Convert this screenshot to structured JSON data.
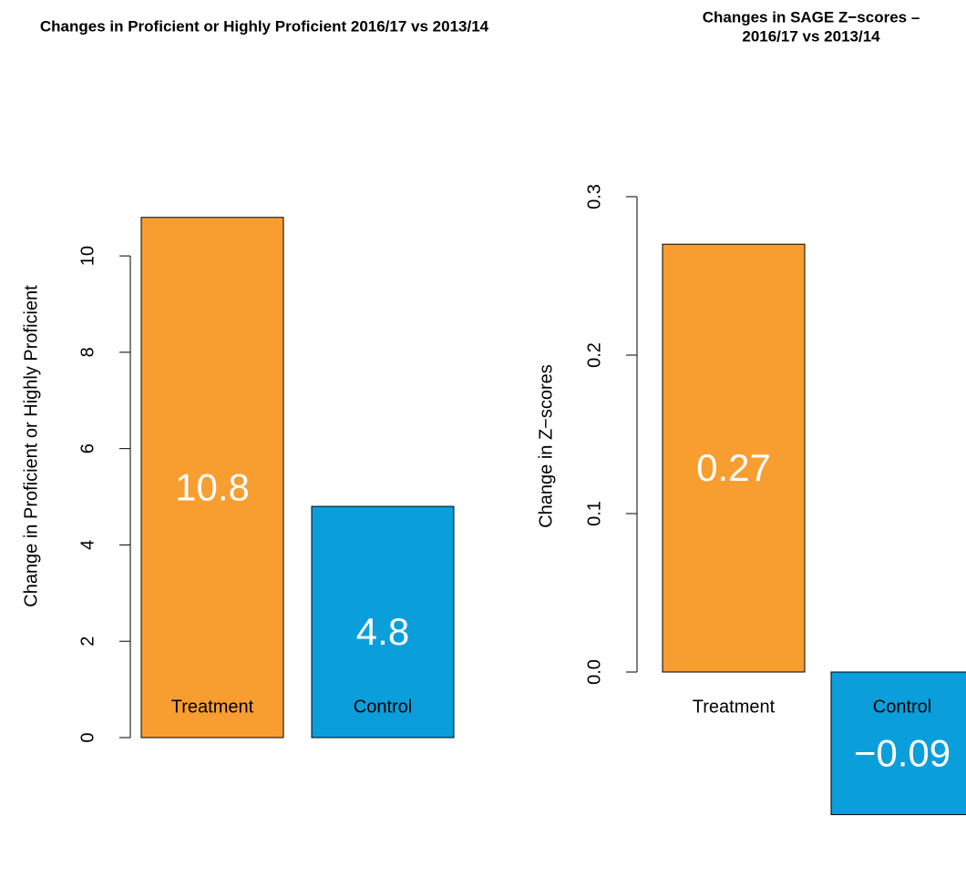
{
  "chart_data": [
    {
      "type": "bar",
      "title": [
        "Changes in Proficient or Highly Proficient 2016/17 vs 2013/14"
      ],
      "y_label": "Change in Proficient or Highly Proficient",
      "categories": [
        "Treatment",
        "Control"
      ],
      "values": [
        10.8,
        4.8
      ],
      "colors": [
        "#f89e31",
        "#0a9fdb"
      ],
      "ylim": [
        0,
        11.23
      ],
      "yticks": [
        0,
        2,
        4,
        6,
        8,
        10
      ]
    },
    {
      "type": "bar",
      "title": [
        "Changes in SAGE Z−scores –",
        "2016/17 vs 2013/14"
      ],
      "y_label": "Change in Z−scores",
      "categories": [
        "Treatment",
        "Control"
      ],
      "values": [
        0.27,
        -0.09
      ],
      "value_labels": [
        "0.27",
        "−0.09"
      ],
      "colors": [
        "#f89e31",
        "#0a9fdb"
      ],
      "ylim": [
        -0.1,
        0.3
      ],
      "yticks": [
        {
          "value": 0,
          "label": "0.0"
        },
        {
          "value": 0.1,
          "label": "0.1"
        },
        {
          "value": 0.2,
          "label": "0.2"
        },
        {
          "value": 0.3,
          "label": "0.3"
        }
      ]
    }
  ]
}
